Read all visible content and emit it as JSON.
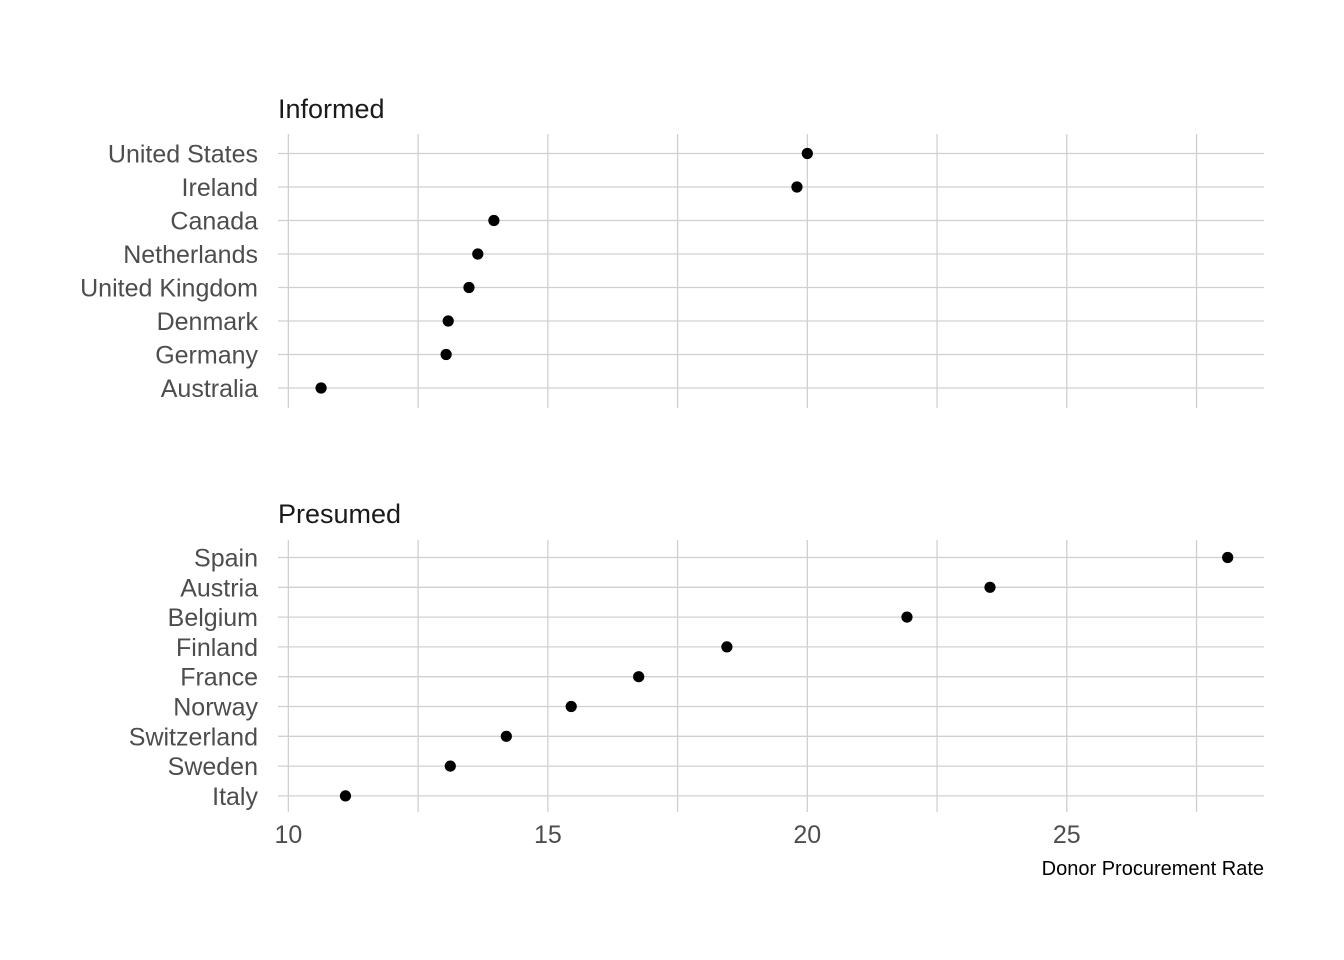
{
  "chart_data": {
    "type": "scatter",
    "xlabel": "Donor Procurement Rate",
    "xlim": [
      9.8,
      28.8
    ],
    "xticks": [
      10,
      15,
      20,
      25
    ],
    "xminor": [
      12.5,
      17.5,
      22.5,
      27.5
    ],
    "grid": true,
    "panels": [
      {
        "title": "Informed",
        "categories": [
          "United States",
          "Ireland",
          "Canada",
          "Netherlands",
          "United Kingdom",
          "Denmark",
          "Germany",
          "Australia"
        ],
        "values": [
          20.0,
          19.8,
          13.96,
          13.65,
          13.48,
          13.08,
          13.04,
          10.63
        ]
      },
      {
        "title": "Presumed",
        "categories": [
          "Spain",
          "Austria",
          "Belgium",
          "Finland",
          "France",
          "Norway",
          "Switzerland",
          "Sweden",
          "Italy"
        ],
        "values": [
          28.1,
          23.52,
          21.92,
          18.45,
          16.75,
          15.45,
          14.2,
          13.12,
          11.1
        ]
      }
    ]
  }
}
